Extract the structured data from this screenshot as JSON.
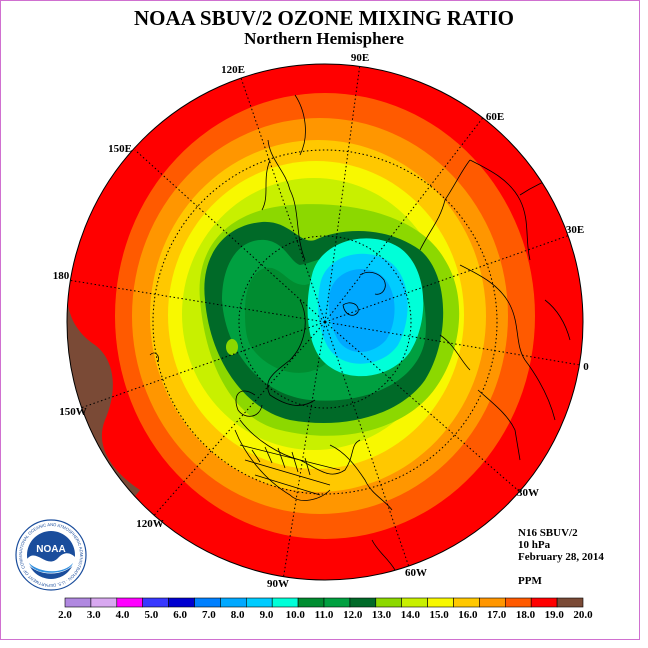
{
  "header": {
    "title": "NOAA SBUV/2 OZONE MIXING RATIO",
    "subtitle": "Northern Hemisphere"
  },
  "map": {
    "longitude_labels": [
      "90E",
      "60E",
      "30E",
      "0",
      "30W",
      "60W",
      "90W",
      "120W",
      "150W",
      "180",
      "150E",
      "120E"
    ]
  },
  "info": {
    "instrument": "N16 SBUV/2",
    "level": "10 hPa",
    "date": "February 28, 2014",
    "units": "PPM"
  },
  "colorbar": {
    "labels": [
      "2.0",
      "3.0",
      "4.0",
      "5.0",
      "6.0",
      "7.0",
      "8.0",
      "9.0",
      "10.0",
      "11.0",
      "12.0",
      "13.0",
      "14.0",
      "15.0",
      "16.0",
      "17.0",
      "18.0",
      "19.0",
      "20.0"
    ],
    "colors": [
      "#b088e0",
      "#d8a8f0",
      "#ff00ff",
      "#3838ff",
      "#0000d0",
      "#0080ff",
      "#00a8ff",
      "#00ccff",
      "#00ffd8",
      "#008c30",
      "#00a040",
      "#006a28",
      "#8cd800",
      "#c8f000",
      "#f8f800",
      "#ffc800",
      "#ff9600",
      "#ff5a00",
      "#ff0000",
      "#7a4a36"
    ]
  },
  "logo": {
    "text": "NOAA",
    "ring_text": "NATIONAL OCEANIC AND ATMOSPHERIC ADMINISTRATION · U.S. DEPARTMENT OF COMMERCE"
  }
}
